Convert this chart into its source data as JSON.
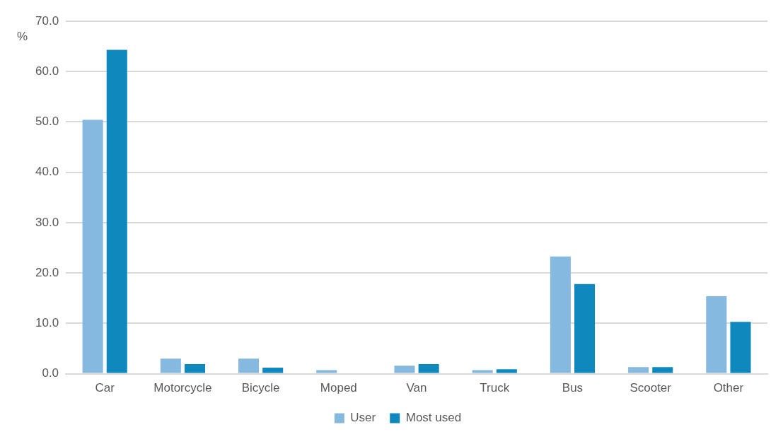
{
  "chart_data": {
    "type": "bar",
    "ylabel": "%",
    "categories": [
      "Car",
      "Motorcycle",
      "Bicycle",
      "Moped",
      "Van",
      "Truck",
      "Bus",
      "Scooter",
      "Other"
    ],
    "series": [
      {
        "name": "User",
        "color": "#86b9e0",
        "values": [
          50.4,
          3.0,
          3.0,
          0.7,
          1.6,
          0.7,
          23.3,
          1.3,
          15.4
        ]
      },
      {
        "name": "Most used",
        "color": "#0e88bd",
        "values": [
          64.3,
          1.9,
          1.2,
          0,
          1.9,
          0.9,
          17.8,
          1.3,
          10.3
        ]
      }
    ],
    "ylim": [
      0,
      70
    ],
    "yticks": [
      {
        "value": 0,
        "label": "0.0"
      },
      {
        "value": 10,
        "label": "10.0"
      },
      {
        "value": 20,
        "label": "20.0"
      },
      {
        "value": 30,
        "label": "30.0"
      },
      {
        "value": 40,
        "label": "40.0"
      },
      {
        "value": 50,
        "label": "50.0"
      },
      {
        "value": 60,
        "label": "60.0"
      },
      {
        "value": 70,
        "label": "70.0"
      }
    ],
    "grid": "y",
    "legend": "bottom"
  }
}
